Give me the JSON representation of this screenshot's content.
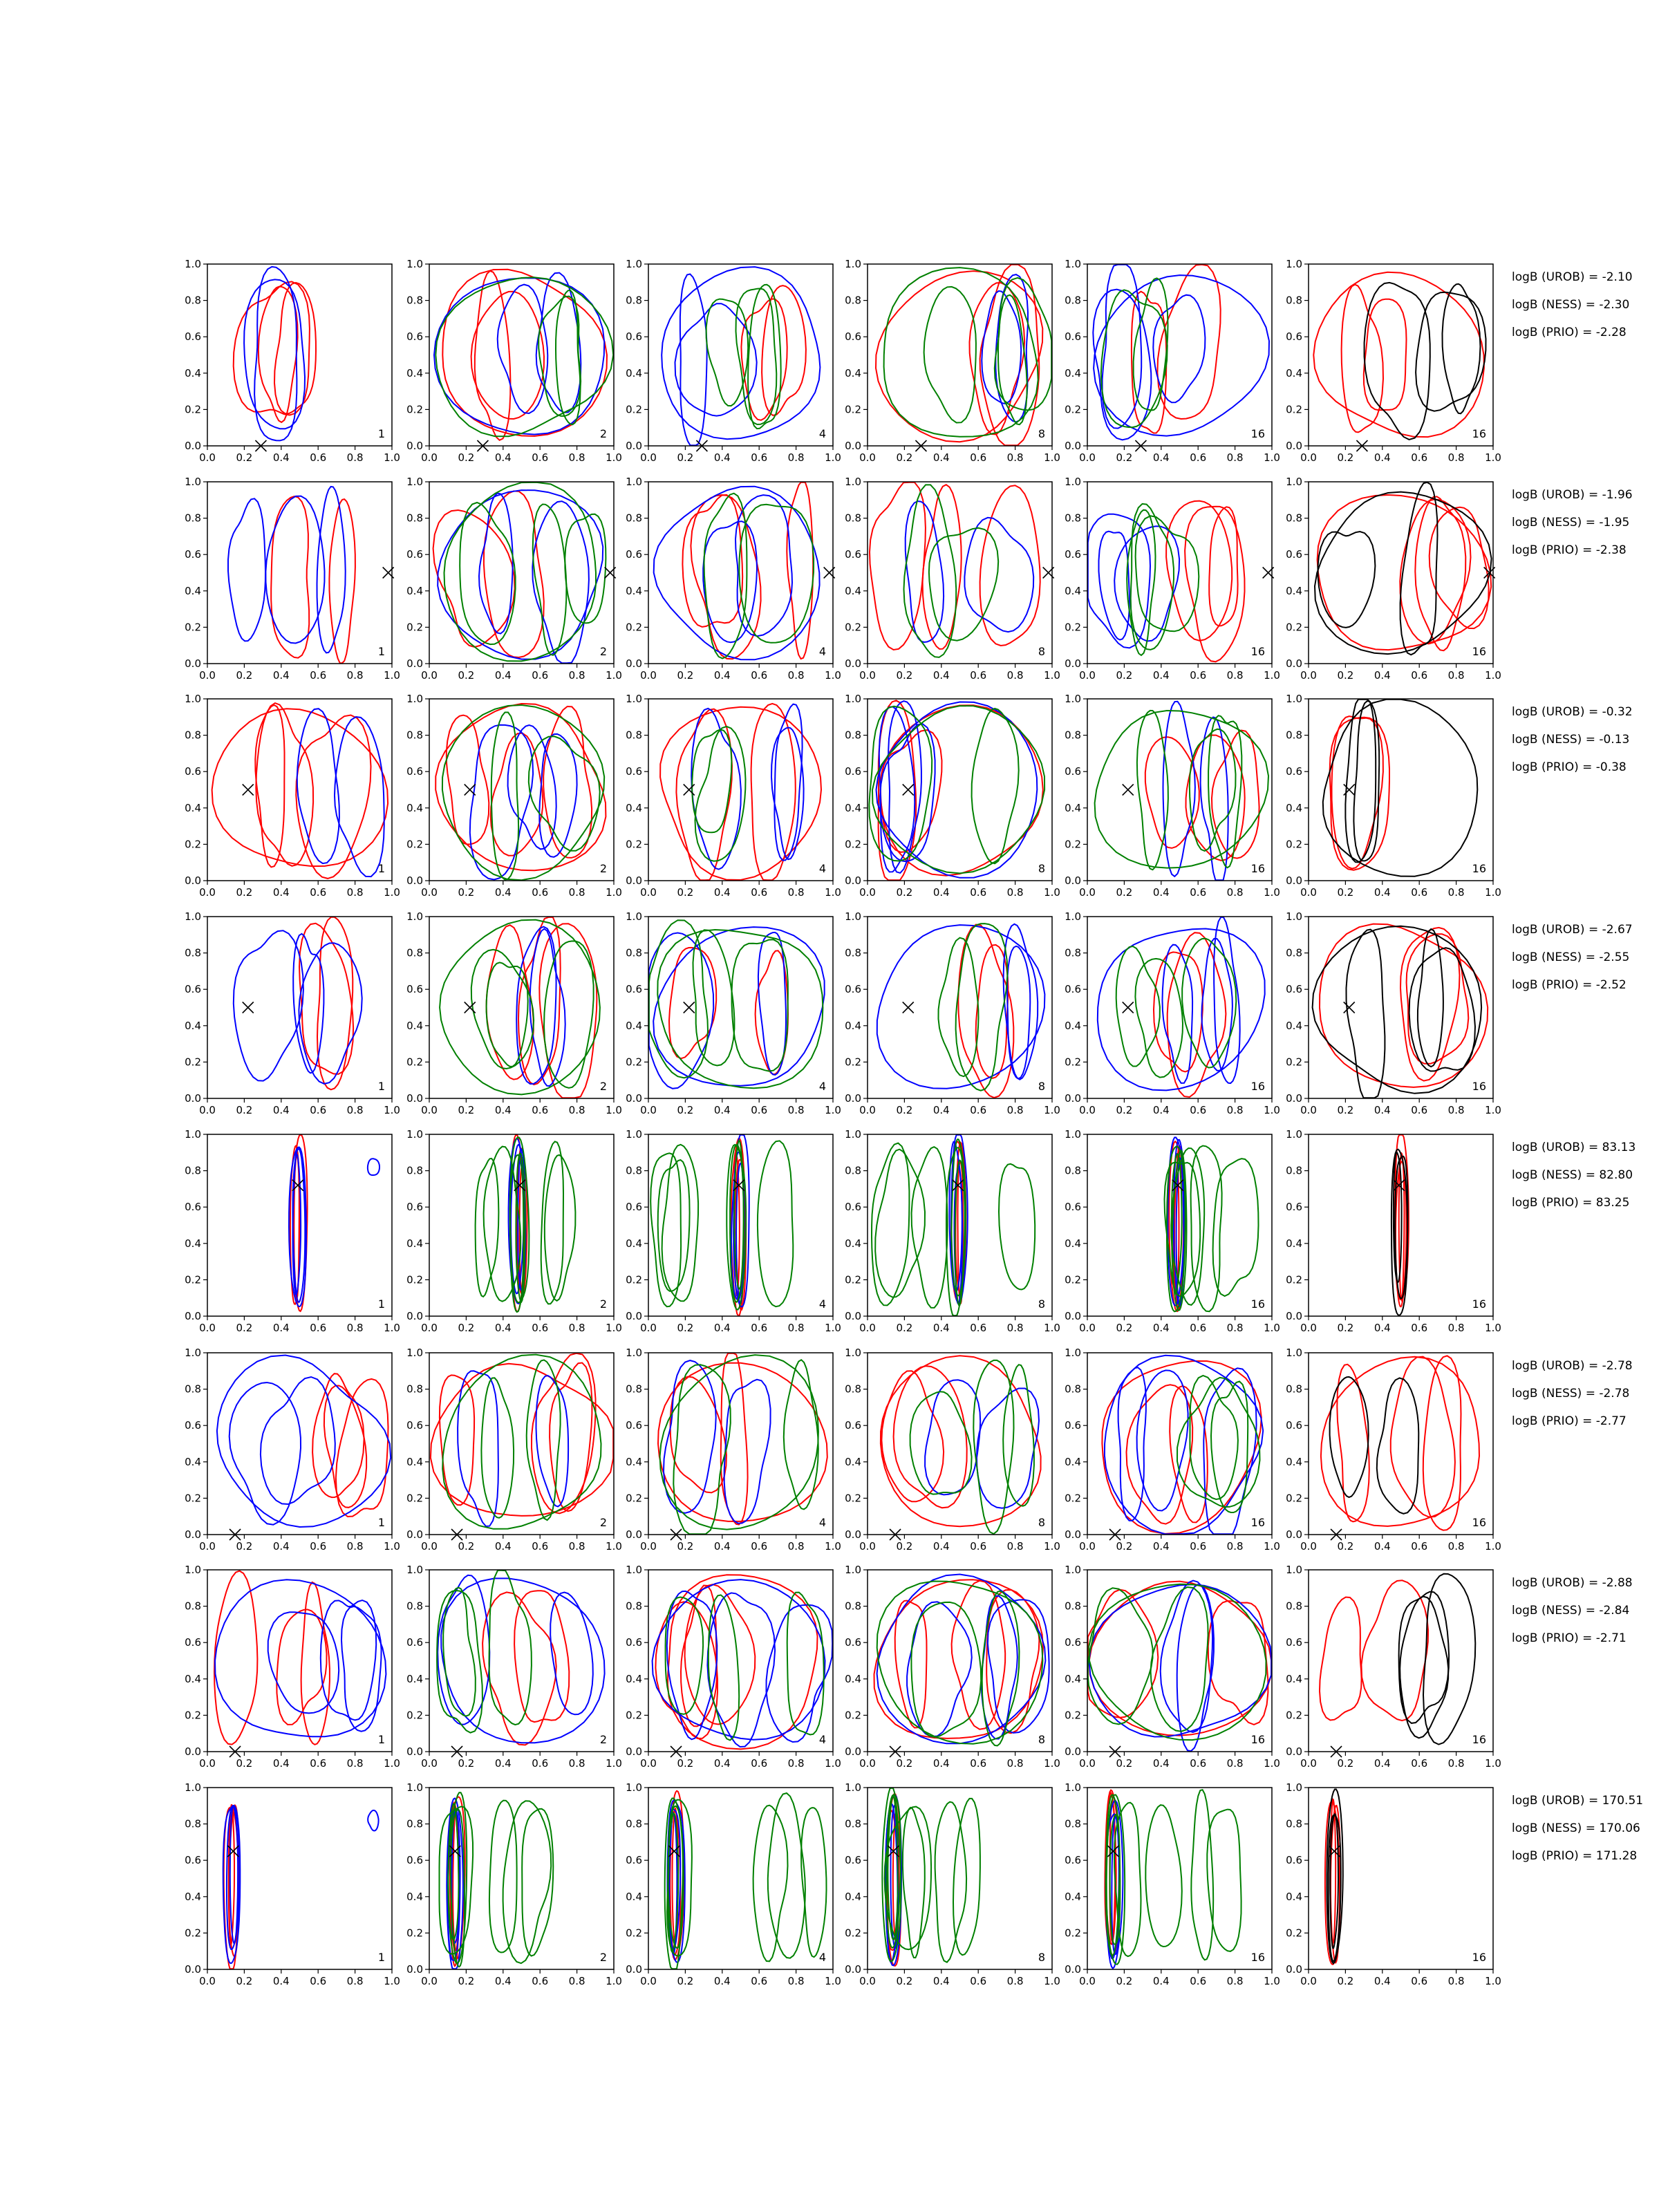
{
  "chart_data": {
    "type": "contour-grid",
    "grid": {
      "rows": 8,
      "cols": 6
    },
    "xlim": [
      0,
      1
    ],
    "ylim": [
      0,
      1
    ],
    "x_ticks": [
      "0.0",
      "0.2",
      "0.4",
      "0.6",
      "0.8",
      "1.0"
    ],
    "y_ticks": [
      "0.0",
      "0.2",
      "0.4",
      "0.6",
      "0.8",
      "1.0"
    ],
    "column_labels": [
      "1",
      "2",
      "4",
      "8",
      "16",
      "16"
    ],
    "colors": {
      "red": "#ff0000",
      "blue": "#0000ff",
      "green": "#008000",
      "black": "#000000"
    },
    "rows": [
      {
        "marker": [
          0.29,
          0.0
        ],
        "stats": [
          "logB (UROB) = -2.10",
          "logB (NESS) = -2.30",
          "logB (PRIO) = -2.28"
        ]
      },
      {
        "marker": [
          0.98,
          0.5
        ],
        "stats": [
          "logB (UROB) = -1.96",
          "logB (NESS) = -1.95",
          "logB (PRIO) = -2.38"
        ]
      },
      {
        "marker": [
          0.22,
          0.5
        ],
        "stats": [
          "logB (UROB) = -0.32",
          "logB (NESS) = -0.13",
          "logB (PRIO) = -0.38"
        ]
      },
      {
        "marker": [
          0.22,
          0.5
        ],
        "stats": [
          "logB (UROB) = -2.67",
          "logB (NESS) = -2.55",
          "logB (PRIO) = -2.52"
        ]
      },
      {
        "marker": [
          0.49,
          0.72
        ],
        "stats": [
          "logB (UROB) = 83.13",
          "logB (NESS) = 82.80",
          "logB (PRIO) = 83.25"
        ]
      },
      {
        "marker": [
          0.15,
          0.0
        ],
        "stats": [
          "logB (UROB) = -2.78",
          "logB (NESS) = -2.78",
          "logB (PRIO) = -2.77"
        ]
      },
      {
        "marker": [
          0.15,
          0.0
        ],
        "stats": [
          "logB (UROB) = -2.88",
          "logB (NESS) = -2.84",
          "logB (PRIO) = -2.71"
        ]
      },
      {
        "marker": [
          0.14,
          0.65
        ],
        "stats": [
          "logB (UROB) = 170.51",
          "logB (NESS) = 170.06",
          "logB (PRIO) = 171.28"
        ]
      }
    ]
  }
}
